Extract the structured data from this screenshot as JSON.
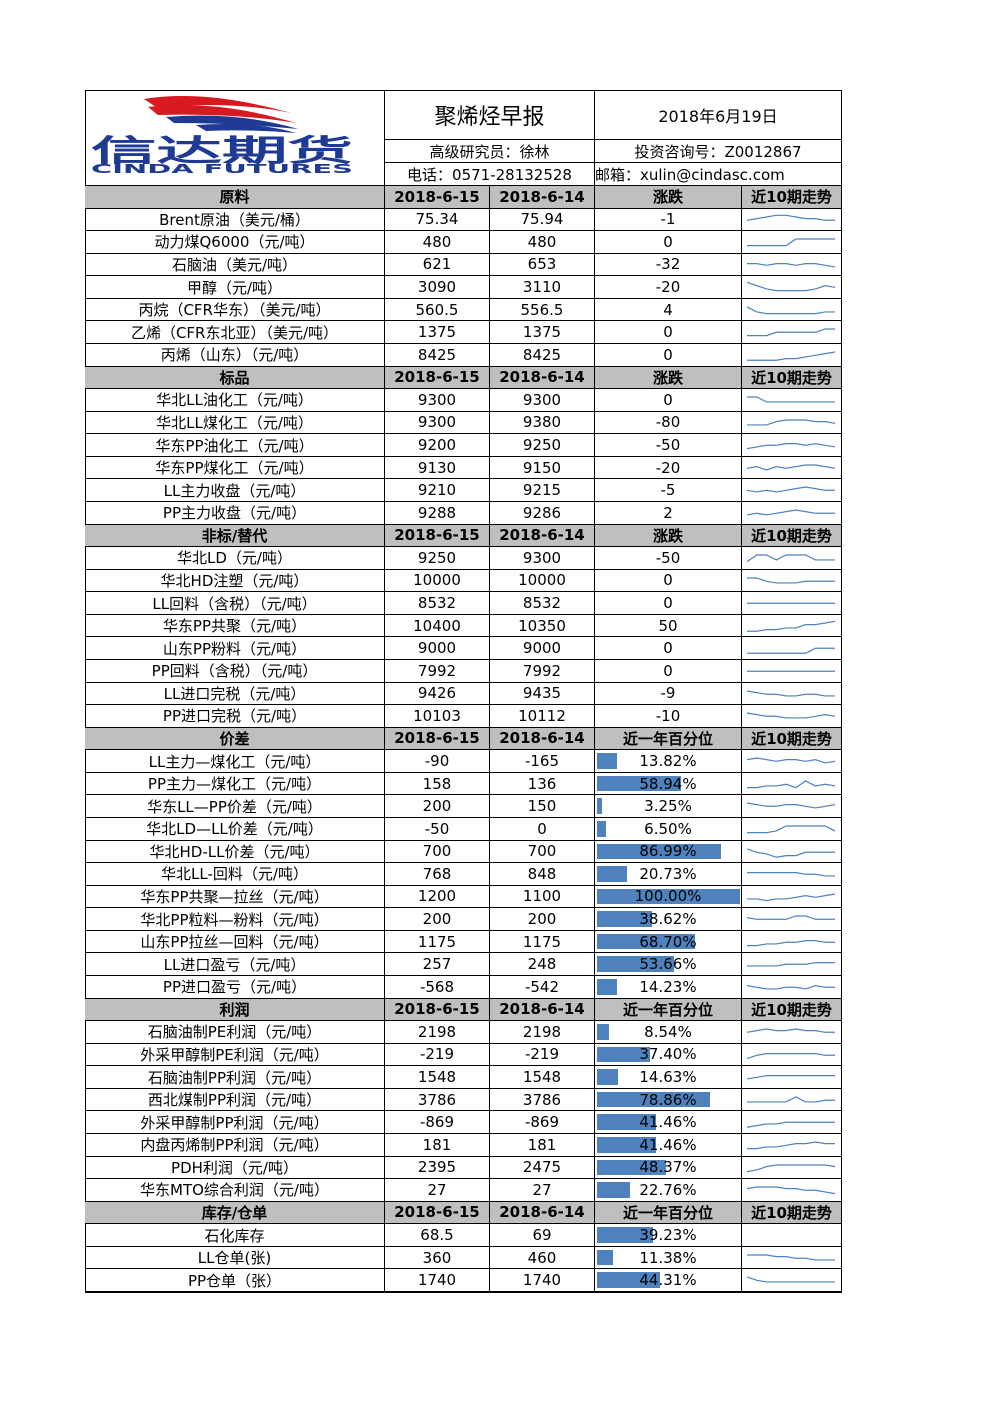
{
  "header": {
    "logo_cn": "信达期货",
    "logo_en": "CINDA FUTURES",
    "title": "聚烯烃早报",
    "date": "2018年6月19日",
    "researcher": "高级研究员：徐林",
    "license": "投资咨询号：Z0012867",
    "phone": "电话：0571-28132528",
    "email": "邮箱：xulin@cindasc.com"
  },
  "sections": [
    {
      "columns": [
        "原料",
        "2018-6-15",
        "2018-6-14",
        "涨跌",
        "近10期走势"
      ],
      "rows": [
        {
          "name": "Brent原油（美元/桶）",
          "v1": 75.34,
          "v2": 75.94,
          "chg": -1,
          "trend": [
            5,
            6,
            7,
            8,
            8,
            7,
            6,
            6,
            5,
            5
          ]
        },
        {
          "name": "动力煤Q6000（元/吨）",
          "v1": 480,
          "v2": 480,
          "chg": 0,
          "trend": [
            3,
            3,
            3,
            3,
            3,
            7,
            7,
            7,
            7,
            7
          ]
        },
        {
          "name": "石脑油（美元/吨）",
          "v1": 621,
          "v2": 653,
          "chg": -32,
          "trend": [
            6,
            6,
            5,
            6,
            6,
            5,
            6,
            6,
            5,
            4
          ]
        },
        {
          "name": "甲醇（元/吨）",
          "v1": 3090,
          "v2": 3110,
          "chg": -20,
          "trend": [
            8,
            6,
            4,
            3,
            3,
            3,
            3,
            4,
            6,
            5
          ]
        },
        {
          "name": "丙烷（CFR华东）（美元/吨）",
          "v1": 560.5,
          "v2": 556.5,
          "chg": 4,
          "trend": [
            7,
            4,
            3,
            3,
            3,
            3,
            3,
            3,
            4,
            4
          ]
        },
        {
          "name": "乙烯（CFR东北亚）（美元/吨）",
          "v1": 1375,
          "v2": 1375,
          "chg": 0,
          "trend": [
            3,
            3,
            3,
            5,
            5,
            5,
            5,
            5,
            7,
            7
          ]
        },
        {
          "name": "丙烯（山东）（元/吨）",
          "v1": 8425,
          "v2": 8425,
          "chg": 0,
          "trend": [
            2,
            2,
            2,
            2,
            3,
            3,
            4,
            5,
            6,
            7
          ]
        }
      ]
    },
    {
      "columns": [
        "标品",
        "2018-6-15",
        "2018-6-14",
        "涨跌",
        "近10期走势"
      ],
      "rows": [
        {
          "name": "华北LL油化工（元/吨）",
          "v1": 9300,
          "v2": 9300,
          "chg": 0,
          "trend": [
            7,
            7,
            4,
            4,
            4,
            4,
            4,
            4,
            4,
            4
          ]
        },
        {
          "name": "华北LL煤化工（元/吨）",
          "v1": 9300,
          "v2": 9380,
          "chg": -80,
          "trend": [
            4,
            4,
            4,
            6,
            7,
            7,
            7,
            6,
            6,
            5
          ]
        },
        {
          "name": "华东PP油化工（元/吨）",
          "v1": 9200,
          "v2": 9250,
          "chg": -50,
          "trend": [
            3,
            4,
            5,
            5,
            6,
            6,
            5,
            6,
            5,
            4
          ]
        },
        {
          "name": "华东PP煤化工（元/吨）",
          "v1": 9130,
          "v2": 9150,
          "chg": -20,
          "trend": [
            5,
            6,
            4,
            6,
            5,
            6,
            7,
            7,
            6,
            5
          ]
        },
        {
          "name": "LL主力收盘（元/吨）",
          "v1": 9210,
          "v2": 9215,
          "chg": -5,
          "trend": [
            5,
            4,
            5,
            4,
            5,
            6,
            7,
            6,
            5,
            5
          ]
        },
        {
          "name": "PP主力收盘（元/吨）",
          "v1": 9288,
          "v2": 9286,
          "chg": 2,
          "trend": [
            4,
            5,
            4,
            5,
            6,
            7,
            6,
            5,
            5,
            5
          ]
        }
      ]
    },
    {
      "columns": [
        "非标/替代",
        "2018-6-15",
        "2018-6-14",
        "涨跌",
        "近10期走势"
      ],
      "rows": [
        {
          "name": "华北LD（元/吨）",
          "v1": 9250,
          "v2": 9300,
          "chg": -50,
          "trend": [
            3,
            7,
            7,
            4,
            7,
            7,
            7,
            4,
            4,
            4
          ]
        },
        {
          "name": "华北HD注塑（元/吨）",
          "v1": 10000,
          "v2": 10000,
          "chg": 0,
          "trend": [
            7,
            7,
            5,
            4,
            4,
            4,
            5,
            5,
            5,
            5
          ]
        },
        {
          "name": "LL回料（含税）（元/吨）",
          "v1": 8532,
          "v2": 8532,
          "chg": 0,
          "trend": [
            5,
            5,
            5,
            5,
            5,
            5,
            5,
            5,
            5,
            5
          ]
        },
        {
          "name": "华东PP共聚（元/吨）",
          "v1": 10400,
          "v2": 10350,
          "chg": 50,
          "trend": [
            2,
            2,
            3,
            3,
            4,
            4,
            6,
            6,
            7,
            8
          ]
        },
        {
          "name": "山东PP粉料（元/吨）",
          "v1": 9000,
          "v2": 9000,
          "chg": 0,
          "trend": [
            2,
            2,
            2,
            2,
            2,
            2,
            2,
            5,
            5,
            5
          ]
        },
        {
          "name": "PP回料（含税）（元/吨）",
          "v1": 7992,
          "v2": 7992,
          "chg": 0,
          "trend": [
            5,
            5,
            5,
            5,
            5,
            5,
            5,
            5,
            5,
            5
          ]
        },
        {
          "name": "LL进口完税（元/吨）",
          "v1": 9426,
          "v2": 9435,
          "chg": -9,
          "trend": [
            7,
            6,
            5,
            5,
            4,
            4,
            5,
            5,
            4,
            4
          ]
        },
        {
          "name": "PP进口完税（元/吨）",
          "v1": 10103,
          "v2": 10112,
          "chg": -10,
          "trend": [
            7,
            6,
            5,
            5,
            4,
            4,
            4,
            5,
            6,
            5
          ]
        }
      ]
    },
    {
      "columns": [
        "价差",
        "2018-6-15",
        "2018-6-14",
        "近一年百分位",
        "近10期走势"
      ],
      "rows": [
        {
          "name": "LL主力—煤化工（元/吨）",
          "v1": -90,
          "v2": -165,
          "pct": {
            "value": 13.82,
            "label": "13.82%"
          },
          "trend": [
            6,
            7,
            6,
            5,
            6,
            6,
            5,
            6,
            4,
            5
          ]
        },
        {
          "name": "PP主力—煤化工（元/吨）",
          "v1": 158,
          "v2": 136,
          "pct": {
            "value": 58.94,
            "label": "58.94%"
          },
          "trend": [
            3,
            3,
            4,
            4,
            5,
            3,
            7,
            4,
            5,
            4
          ]
        },
        {
          "name": "华东LL—PP价差（元/吨）",
          "v1": 200,
          "v2": 150,
          "pct": {
            "value": 3.25,
            "label": "3.25%"
          },
          "trend": [
            7,
            6,
            5,
            5,
            6,
            6,
            5,
            4,
            5,
            6
          ]
        },
        {
          "name": "华北LD—LL价差（元/吨）",
          "v1": -50,
          "v2": 0,
          "pct": {
            "value": 6.5,
            "label": "6.50%"
          },
          "trend": [
            3,
            3,
            3,
            4,
            7,
            7,
            7,
            7,
            7,
            4
          ]
        },
        {
          "name": "华北HD-LL价差（元/吨）",
          "v1": 700,
          "v2": 700,
          "pct": {
            "value": 86.99,
            "label": "86.99%"
          },
          "trend": [
            7,
            5,
            4,
            2,
            3,
            3,
            5,
            5,
            5,
            5
          ]
        },
        {
          "name": "华北LL-回料（元/吨）",
          "v1": 768,
          "v2": 848,
          "pct": {
            "value": 20.73,
            "label": "20.73%"
          },
          "trend": [
            6,
            6,
            6,
            6,
            6,
            6,
            5,
            5,
            4,
            4
          ]
        },
        {
          "name": "华东PP共聚—拉丝（元/吨）",
          "v1": 1200,
          "v2": 1100,
          "pct": {
            "value": 100,
            "label": "100.00%"
          },
          "trend": [
            4,
            4,
            3,
            4,
            4,
            5,
            6,
            5,
            6,
            7
          ]
        },
        {
          "name": "华北PP粒料—粉料（元/吨）",
          "v1": 200,
          "v2": 200,
          "pct": {
            "value": 38.62,
            "label": "38.62%"
          },
          "trend": [
            6,
            5,
            5,
            5,
            5,
            7,
            7,
            5,
            5,
            5
          ]
        },
        {
          "name": "山东PP拉丝—回料（元/吨）",
          "v1": 1175,
          "v2": 1175,
          "pct": {
            "value": 68.7,
            "label": "68.70%"
          },
          "trend": [
            3,
            3,
            4,
            4,
            5,
            5,
            6,
            6,
            5,
            5
          ]
        },
        {
          "name": "LL进口盈亏（元/吨）",
          "v1": 257,
          "v2": 248,
          "pct": {
            "value": 53.66,
            "label": "53.66%"
          },
          "trend": [
            4,
            4,
            4,
            4,
            5,
            5,
            5,
            6,
            6,
            6
          ]
        },
        {
          "name": "PP进口盈亏（元/吨）",
          "v1": -568,
          "v2": -542,
          "pct": {
            "value": 14.23,
            "label": "14.23%"
          },
          "trend": [
            6,
            5,
            4,
            4,
            5,
            5,
            4,
            6,
            5,
            5
          ]
        }
      ]
    },
    {
      "columns": [
        "利润",
        "2018-6-15",
        "2018-6-14",
        "近一年百分位",
        "近10期走势"
      ],
      "rows": [
        {
          "name": "石脑油制PE利润（元/吨）",
          "v1": 2198,
          "v2": 2198,
          "pct": {
            "value": 8.54,
            "label": "8.54%"
          },
          "trend": [
            5,
            6,
            7,
            6,
            6,
            7,
            6,
            6,
            5,
            5
          ]
        },
        {
          "name": "外采甲醇制PE利润（元/吨）",
          "v1": -219,
          "v2": -219,
          "pct": {
            "value": 37.4,
            "label": "37.40%"
          },
          "trend": [
            3,
            5,
            6,
            6,
            6,
            6,
            6,
            6,
            5,
            5
          ]
        },
        {
          "name": "石脑油制PP利润（元/吨）",
          "v1": 1548,
          "v2": 1548,
          "pct": {
            "value": 14.63,
            "label": "14.63%"
          },
          "trend": [
            4,
            5,
            6,
            6,
            6,
            6,
            6,
            6,
            6,
            6
          ]
        },
        {
          "name": "西北煤制PP利润（元/吨）",
          "v1": 3786,
          "v2": 3786,
          "pct": {
            "value": 78.86,
            "label": "78.86%"
          },
          "trend": [
            4,
            4,
            4,
            4,
            4,
            7,
            4,
            4,
            5,
            5
          ]
        },
        {
          "name": "外采甲醇制PP利润（元/吨）",
          "v1": -869,
          "v2": -869,
          "pct": {
            "value": 41.46,
            "label": "41.46%"
          },
          "trend": [
            2,
            3,
            4,
            4,
            5,
            5,
            5,
            5,
            5,
            5
          ]
        },
        {
          "name": "内盘丙烯制PP利润（元/吨）",
          "v1": 181,
          "v2": 181,
          "pct": {
            "value": 41.46,
            "label": "41.46%"
          },
          "trend": [
            3,
            3,
            4,
            4,
            5,
            6,
            6,
            7,
            6,
            6
          ]
        },
        {
          "name": "PDH利润（元/吨）",
          "v1": 2395,
          "v2": 2475,
          "pct": {
            "value": 48.37,
            "label": "48.37%"
          },
          "trend": [
            3,
            4,
            6,
            7,
            7,
            7,
            7,
            7,
            7,
            6
          ]
        },
        {
          "name": "华东MTO综合利润（元/吨）",
          "v1": 27,
          "v2": 27,
          "pct": {
            "value": 22.76,
            "label": "22.76%"
          },
          "trend": [
            6,
            7,
            7,
            7,
            6,
            6,
            5,
            5,
            4,
            3
          ]
        }
      ]
    },
    {
      "columns": [
        "库存/仓单",
        "2018-6-15",
        "2018-6-14",
        "近一年百分位",
        "近10期走势"
      ],
      "rows": [
        {
          "name": "石化库存",
          "v1": 68.5,
          "v2": 69,
          "pct": {
            "value": 39.23,
            "label": "39.23%"
          }
        },
        {
          "name": "LL仓单(张)",
          "v1": 360,
          "v2": 460,
          "pct": {
            "value": 11.38,
            "label": "11.38%"
          },
          "trend": [
            7,
            7,
            7,
            6,
            6,
            5,
            5,
            4,
            4,
            4
          ]
        },
        {
          "name": "PP仓单（张）",
          "v1": 1740,
          "v2": 1740,
          "pct": {
            "value": 44.31,
            "label": "44.31%"
          },
          "trend": [
            7,
            5,
            4,
            4,
            4,
            4,
            4,
            4,
            4,
            4
          ]
        }
      ]
    }
  ]
}
